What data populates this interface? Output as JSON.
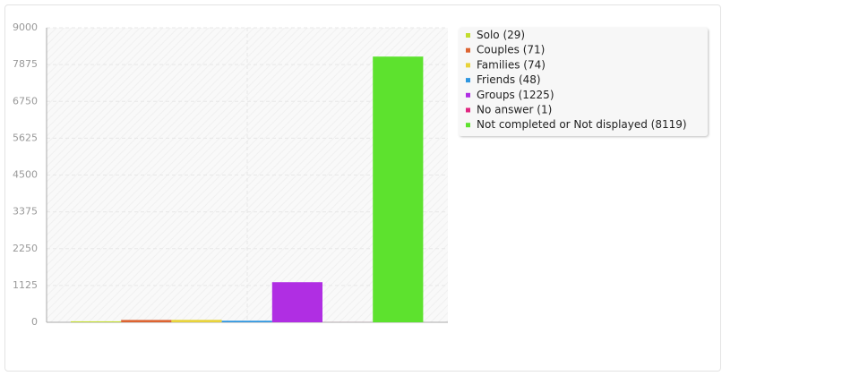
{
  "chart_data": {
    "type": "bar",
    "categories": [
      "Solo (29)",
      "Couples (71)",
      "Families (74)",
      "Friends (48)",
      "Groups (1225)",
      "No answer (1)",
      "Not completed or Not displayed (8119)"
    ],
    "values": [
      29,
      71,
      74,
      48,
      1225,
      1,
      8119
    ],
    "colors": [
      "#c2dd2e",
      "#dd6431",
      "#e8d33a",
      "#2e96e0",
      "#b02ee3",
      "#e02680",
      "#5de22e"
    ],
    "ylim": [
      0,
      9000
    ],
    "yticks": [
      0,
      1125,
      2250,
      3375,
      4500,
      5625,
      6750,
      7875,
      9000
    ],
    "grid": true,
    "legend": "right"
  }
}
